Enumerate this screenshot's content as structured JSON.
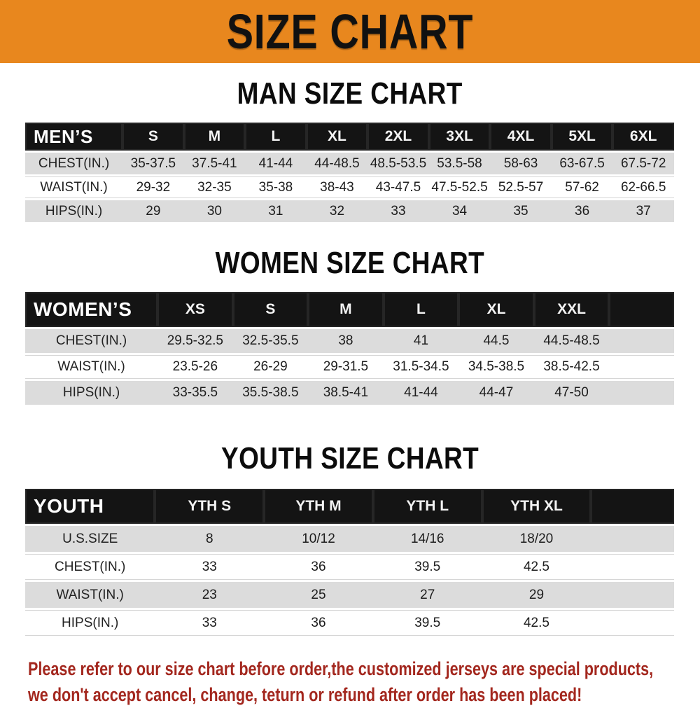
{
  "banner": {
    "title": "SIZE CHART"
  },
  "colors": {
    "banner_bg": "#E8871E",
    "header_bar": "#141414",
    "row_stripe": "#DCDCDC",
    "notice_text": "#A3271E"
  },
  "sections": [
    {
      "heading": "MAN SIZE CHART",
      "corner_label": "MEN’S",
      "columns": [
        "S",
        "M",
        "L",
        "XL",
        "2XL",
        "3XL",
        "4XL",
        "5XL",
        "6XL"
      ],
      "rows": [
        {
          "label": "CHEST(IN.)",
          "values": [
            "35-37.5",
            "37.5-41",
            "41-44",
            "44-48.5",
            "48.5-53.5",
            "53.5-58",
            "58-63",
            "63-67.5",
            "67.5-72"
          ]
        },
        {
          "label": "WAIST(IN.)",
          "values": [
            "29-32",
            "32-35",
            "35-38",
            "38-43",
            "43-47.5",
            "47.5-52.5",
            "52.5-57",
            "57-62",
            "62-66.5"
          ]
        },
        {
          "label": "HIPS(IN.)",
          "values": [
            "29",
            "30",
            "31",
            "32",
            "33",
            "34",
            "35",
            "36",
            "37"
          ]
        }
      ]
    },
    {
      "heading": "WOMEN SIZE CHART",
      "corner_label": "WOMEN’S",
      "columns": [
        "XS",
        "S",
        "M",
        "L",
        "XL",
        "XXL"
      ],
      "rows": [
        {
          "label": "CHEST(IN.)",
          "values": [
            "29.5-32.5",
            "32.5-35.5",
            "38",
            "41",
            "44.5",
            "44.5-48.5"
          ]
        },
        {
          "label": "WAIST(IN.)",
          "values": [
            "23.5-26",
            "26-29",
            "29-31.5",
            "31.5-34.5",
            "34.5-38.5",
            "38.5-42.5"
          ]
        },
        {
          "label": "HIPS(IN.)",
          "values": [
            "33-35.5",
            "35.5-38.5",
            "38.5-41",
            "41-44",
            "44-47",
            "47-50"
          ]
        }
      ]
    },
    {
      "heading": "YOUTH SIZE CHART",
      "corner_label": "YOUTH",
      "columns": [
        "YTH S",
        "YTH M",
        "YTH L",
        "YTH XL"
      ],
      "rows": [
        {
          "label": "U.S.SIZE",
          "values": [
            "8",
            "10/12",
            "14/16",
            "18/20"
          ]
        },
        {
          "label": "CHEST(IN.)",
          "values": [
            "33",
            "36",
            "39.5",
            "42.5"
          ]
        },
        {
          "label": "WAIST(IN.)",
          "values": [
            "23",
            "25",
            "27",
            "29"
          ]
        },
        {
          "label": "HIPS(IN.)",
          "values": [
            "33",
            "36",
            "39.5",
            "42.5"
          ]
        }
      ]
    }
  ],
  "chart_data": {
    "type": "table",
    "title": "SIZE CHART",
    "tables": [
      "MAN SIZE CHART",
      "WOMEN SIZE CHART",
      "YOUTH SIZE CHART"
    ]
  },
  "footer": {
    "line1": "Please refer to our size chart before order,the customized jerseys are special products,",
    "line2": "we don't accept cancel, change, teturn or refund after order has been placed!"
  }
}
